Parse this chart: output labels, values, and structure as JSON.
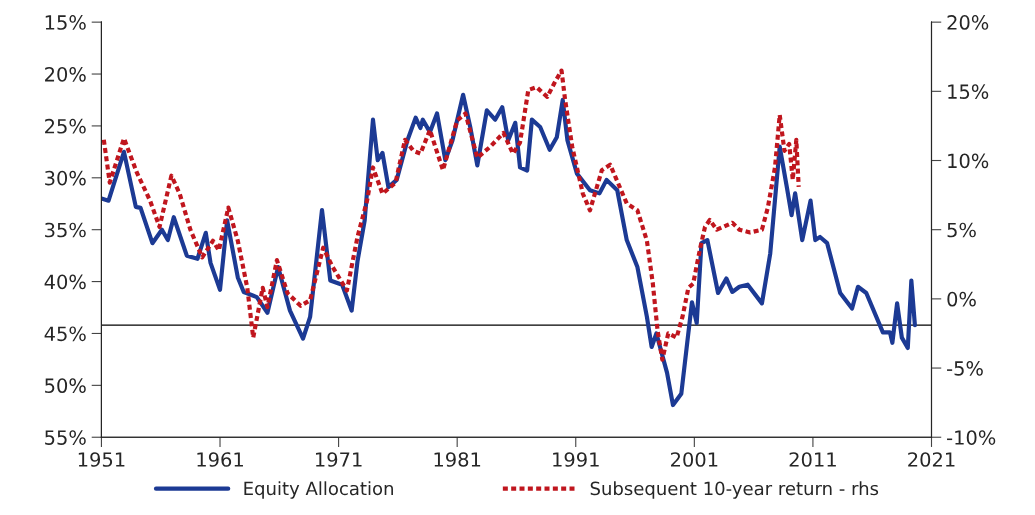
{
  "chart_data": {
    "type": "line",
    "xlim": [
      1951,
      2021
    ],
    "xticks": [
      1951,
      1961,
      1971,
      1981,
      1991,
      2001,
      2011,
      2021
    ],
    "ylim": [
      55,
      15
    ],
    "yticks": [
      {
        "value": 15,
        "label": "15%"
      },
      {
        "value": 20,
        "label": "20%"
      },
      {
        "value": 25,
        "label": "25%"
      },
      {
        "value": 30,
        "label": "30%"
      },
      {
        "value": 35,
        "label": "35%"
      },
      {
        "value": 40,
        "label": "40%"
      },
      {
        "value": 45,
        "label": "45%"
      },
      {
        "value": 50,
        "label": "50%"
      },
      {
        "value": 55,
        "label": "55%"
      }
    ],
    "y2lim": [
      -10,
      20
    ],
    "y2ticks": [
      {
        "value": -10,
        "label": "-10%"
      },
      {
        "value": -5,
        "label": "-5%"
      },
      {
        "value": 0,
        "label": "0%"
      },
      {
        "value": 5,
        "label": "5%"
      },
      {
        "value": 10,
        "label": "10%"
      },
      {
        "value": 15,
        "label": "15%"
      },
      {
        "value": 20,
        "label": "20%"
      }
    ],
    "legend": "bottom",
    "ref_lines": [
      {
        "axis": "y",
        "value": 44.2,
        "color": "#000000"
      }
    ],
    "series": [
      {
        "name": "Equity Allocation",
        "color": "#1c3a94",
        "axis": "y",
        "line_style": "solid",
        "x": [
          1951.0,
          1951.6,
          1952.9,
          1953.9,
          1954.3,
          1955.3,
          1956.1,
          1956.6,
          1957.1,
          1958.2,
          1959.1,
          1959.8,
          1960.2,
          1961.0,
          1961.6,
          1962.5,
          1963.0,
          1964.1,
          1965.0,
          1965.9,
          1966.9,
          1968.0,
          1968.6,
          1969.6,
          1970.3,
          1971.3,
          1972.1,
          1972.6,
          1973.2,
          1973.9,
          1974.3,
          1974.7,
          1975.2,
          1975.9,
          1976.8,
          1977.5,
          1977.9,
          1978.1,
          1978.7,
          1979.3,
          1980.0,
          1980.6,
          1981.5,
          1982.1,
          1982.7,
          1983.5,
          1984.2,
          1984.8,
          1985.3,
          1985.9,
          1986.3,
          1986.9,
          1987.3,
          1988.0,
          1988.8,
          1989.4,
          1989.9,
          1990.3,
          1991.1,
          1992.2,
          1993.0,
          1993.6,
          1994.5,
          1995.3,
          1996.2,
          1997.0,
          1997.4,
          1997.8,
          1998.7,
          1999.2,
          1999.9,
          2000.4,
          2000.8,
          2001.2,
          2001.6,
          2002.1,
          2003.0,
          2003.7,
          2004.2,
          2004.8,
          2005.5,
          2006.7,
          2007.4,
          2008.2,
          2008.8,
          2009.2,
          2009.5,
          2010.1,
          2010.8,
          2011.2,
          2011.6,
          2012.2,
          2013.3,
          2014.3,
          2014.8,
          2015.5,
          2016.9,
          2017.5,
          2017.7,
          2018.1,
          2018.5,
          2019.0,
          2019.3,
          2019.6
        ],
        "values": [
          32.0,
          32.2,
          27.5,
          32.8,
          32.9,
          36.3,
          35.0,
          36.0,
          33.8,
          37.5,
          37.8,
          35.3,
          38.2,
          40.8,
          34.1,
          39.6,
          41.0,
          41.5,
          43.0,
          38.6,
          42.8,
          45.5,
          43.4,
          33.1,
          39.9,
          40.3,
          42.8,
          38.0,
          34.1,
          24.4,
          28.3,
          27.6,
          30.9,
          30.2,
          26.4,
          24.2,
          25.2,
          24.4,
          25.6,
          23.8,
          28.3,
          26.4,
          22.0,
          25.1,
          28.8,
          23.5,
          24.4,
          23.2,
          26.4,
          24.7,
          29.0,
          29.3,
          24.4,
          25.1,
          27.3,
          26.1,
          22.5,
          26.4,
          29.6,
          31.2,
          31.5,
          30.2,
          31.2,
          36.0,
          38.6,
          43.4,
          46.3,
          45.0,
          48.8,
          51.9,
          50.8,
          45.9,
          42.0,
          44.0,
          36.3,
          36.0,
          41.1,
          39.7,
          41.0,
          40.5,
          40.3,
          42.1,
          37.3,
          27.0,
          30.9,
          33.6,
          31.5,
          36.0,
          32.2,
          36.0,
          35.7,
          36.3,
          41.1,
          42.6,
          40.5,
          41.1,
          44.9,
          44.9,
          45.9,
          42.1,
          45.4,
          46.4,
          39.9,
          44.2
        ]
      },
      {
        "name": "Subsequent 10-year return - rhs",
        "color": "#c0161e",
        "axis": "y2",
        "line_style": "dotted",
        "x": [
          1951.2,
          1951.7,
          1952.9,
          1954.0,
          1955.1,
          1955.9,
          1956.9,
          1957.6,
          1958.5,
          1959.5,
          1960.4,
          1960.9,
          1961.7,
          1962.5,
          1963.3,
          1963.8,
          1964.6,
          1965.0,
          1965.8,
          1966.7,
          1967.8,
          1968.6,
          1969.7,
          1970.5,
          1971.7,
          1972.6,
          1973.4,
          1973.9,
          1974.7,
          1975.8,
          1976.6,
          1977.3,
          1977.9,
          1978.7,
          1979.8,
          1981.0,
          1981.7,
          1982.7,
          1983.8,
          1984.9,
          1985.7,
          1986.3,
          1987.0,
          1987.7,
          1988.6,
          1989.2,
          1989.8,
          1990.1,
          1990.7,
          1991.6,
          1992.2,
          1993.2,
          1993.9,
          1995.3,
          1996.2,
          1997.0,
          1997.5,
          1997.9,
          1998.3,
          1998.8,
          1999.5,
          2000.0,
          2000.5,
          2000.9,
          2001.5,
          2001.9,
          2002.3,
          2002.9,
          2004.2,
          2004.8,
          2005.7,
          2006.7,
          2007.2,
          2007.8,
          2008.2,
          2008.6,
          2009.0,
          2009.3,
          2009.6,
          2009.8
        ],
        "values": [
          11.5,
          8.4,
          11.6,
          9.1,
          7.1,
          5.2,
          8.9,
          7.6,
          5.0,
          3.0,
          4.2,
          3.5,
          6.6,
          4.2,
          0.8,
          -2.8,
          0.8,
          -0.6,
          2.8,
          0.4,
          -0.5,
          -0.1,
          3.7,
          2.3,
          0.6,
          4.5,
          7.1,
          9.5,
          7.6,
          8.4,
          11.5,
          10.7,
          10.5,
          12.2,
          9.3,
          12.9,
          13.4,
          10.2,
          11.0,
          12.0,
          10.5,
          11.3,
          15.1,
          15.3,
          14.6,
          15.6,
          16.5,
          14.4,
          11.0,
          7.6,
          6.4,
          9.3,
          9.7,
          6.9,
          6.4,
          4.2,
          1.1,
          -2.3,
          -4.4,
          -2.5,
          -2.8,
          -1.3,
          0.8,
          1.1,
          3.7,
          5.2,
          5.7,
          5.0,
          5.5,
          5.0,
          4.8,
          5.0,
          6.6,
          9.5,
          13.3,
          10.7,
          11.2,
          8.6,
          11.5,
          8.1
        ]
      }
    ]
  }
}
